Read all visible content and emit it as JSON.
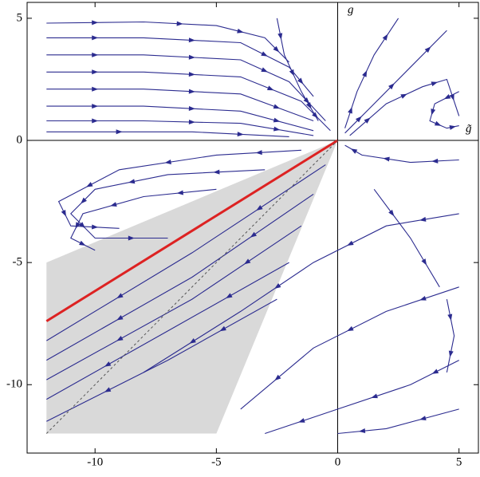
{
  "chart_data": {
    "type": "streamplot",
    "xlabel": "g̃",
    "ylabel": "g",
    "xlim": [
      -12.8,
      5.8
    ],
    "ylim": [
      -12.8,
      5.65
    ],
    "xticks": [
      -10,
      -5,
      0,
      5
    ],
    "yticks": [
      -10,
      -5,
      0,
      5
    ],
    "shaded_region": {
      "x": [
        -12,
        -12,
        0,
        -5
      ],
      "y": [
        -12,
        -5,
        0,
        -12
      ],
      "color": "#d9d9d9"
    },
    "lines": [
      {
        "x": [
          -12,
          0
        ],
        "y": [
          -7.4,
          0
        ],
        "color": "#dd2222",
        "dashed": false
      },
      {
        "x": [
          -12,
          0
        ],
        "y": [
          -12,
          0
        ],
        "color": "#555555",
        "dashed": true
      }
    ],
    "stream_color": "#2b2b8f",
    "streamlines": [
      {
        "x": [
          -12,
          -8,
          -5,
          -3,
          -2
        ],
        "y": [
          4.8,
          4.85,
          4.7,
          4.2,
          3.2
        ]
      },
      {
        "x": [
          -12,
          -8,
          -4,
          -2,
          -1
        ],
        "y": [
          4.2,
          4.2,
          4.0,
          3.0,
          1.8
        ]
      },
      {
        "x": [
          -12,
          -8,
          -4,
          -2,
          -0.5
        ],
        "y": [
          3.5,
          3.5,
          3.3,
          2.4,
          0.8
        ]
      },
      {
        "x": [
          -12,
          -8,
          -4,
          -1.5,
          -0.3
        ],
        "y": [
          2.8,
          2.8,
          2.6,
          1.6,
          0.4
        ]
      },
      {
        "x": [
          -12,
          -8,
          -4,
          -1
        ],
        "y": [
          2.1,
          2.1,
          1.9,
          0.8
        ]
      },
      {
        "x": [
          -12,
          -8,
          -4,
          -1
        ],
        "y": [
          1.4,
          1.4,
          1.2,
          0.4
        ]
      },
      {
        "x": [
          -12,
          -8,
          -4,
          -1
        ],
        "y": [
          0.8,
          0.8,
          0.7,
          0.2
        ]
      },
      {
        "x": [
          -12,
          -6,
          -2
        ],
        "y": [
          0.35,
          0.35,
          0.15
        ]
      },
      {
        "x": [
          -2.5,
          -2.2,
          -1.5,
          -0.8
        ],
        "y": [
          5,
          3.5,
          2,
          0.8
        ]
      },
      {
        "x": [
          0.3,
          0.8,
          1.5,
          2.5
        ],
        "y": [
          0.5,
          2,
          3.5,
          5
        ]
      },
      {
        "x": [
          0.3,
          1.5,
          3,
          4.5
        ],
        "y": [
          0.3,
          1.5,
          3,
          4.5
        ]
      },
      {
        "x": [
          0.5,
          2,
          3.5,
          4.5,
          5
        ],
        "y": [
          0.2,
          1.5,
          2.2,
          2.5,
          1
        ]
      },
      {
        "x": [
          5,
          4,
          3.8,
          4.5,
          5
        ],
        "y": [
          2,
          1.5,
          0.8,
          0.5,
          0.6
        ]
      },
      {
        "x": [
          -1.5,
          -5,
          -9,
          -11.5,
          -11,
          -9
        ],
        "y": [
          -0.4,
          -0.6,
          -1.2,
          -2.5,
          -3.5,
          -3.6
        ]
      },
      {
        "x": [
          -3,
          -7,
          -10,
          -11,
          -10,
          -7
        ],
        "y": [
          -1.2,
          -1.4,
          -2,
          -3,
          -4,
          -4
        ]
      },
      {
        "x": [
          -5,
          -8,
          -10.5,
          -11,
          -10
        ],
        "y": [
          -2,
          -2.3,
          -3,
          -4,
          -4.5
        ]
      },
      {
        "x": [
          -0.5,
          -6,
          -12
        ],
        "y": [
          -1,
          -4.6,
          -8.2
        ]
      },
      {
        "x": [
          -1,
          -6,
          -12
        ],
        "y": [
          -2.2,
          -5.6,
          -9
        ]
      },
      {
        "x": [
          -1.5,
          -6,
          -12
        ],
        "y": [
          -3.5,
          -6.5,
          -9.8
        ]
      },
      {
        "x": [
          -2,
          -7,
          -12
        ],
        "y": [
          -5,
          -7.8,
          -10.6
        ]
      },
      {
        "x": [
          -2.5,
          -7,
          -12
        ],
        "y": [
          -6.5,
          -9,
          -11.5
        ]
      },
      {
        "x": [
          5,
          3,
          1,
          0.3
        ],
        "y": [
          -0.8,
          -0.9,
          -0.6,
          -0.2
        ]
      },
      {
        "x": [
          5,
          2,
          -1,
          -4,
          -8
        ],
        "y": [
          -3,
          -3.5,
          -5,
          -7,
          -9.5
        ]
      },
      {
        "x": [
          5,
          2,
          -1,
          -4
        ],
        "y": [
          -6,
          -7,
          -8.5,
          -11
        ]
      },
      {
        "x": [
          5,
          3,
          0,
          -3
        ],
        "y": [
          -9,
          -10,
          -11,
          -12
        ]
      },
      {
        "x": [
          5,
          2,
          0
        ],
        "y": [
          -11,
          -11.8,
          -12
        ]
      },
      {
        "x": [
          1.5,
          3,
          4.2
        ],
        "y": [
          -2,
          -4,
          -6
        ]
      },
      {
        "x": [
          4.5,
          4.8,
          4.5
        ],
        "y": [
          -6.5,
          -8,
          -9.5
        ]
      }
    ]
  }
}
